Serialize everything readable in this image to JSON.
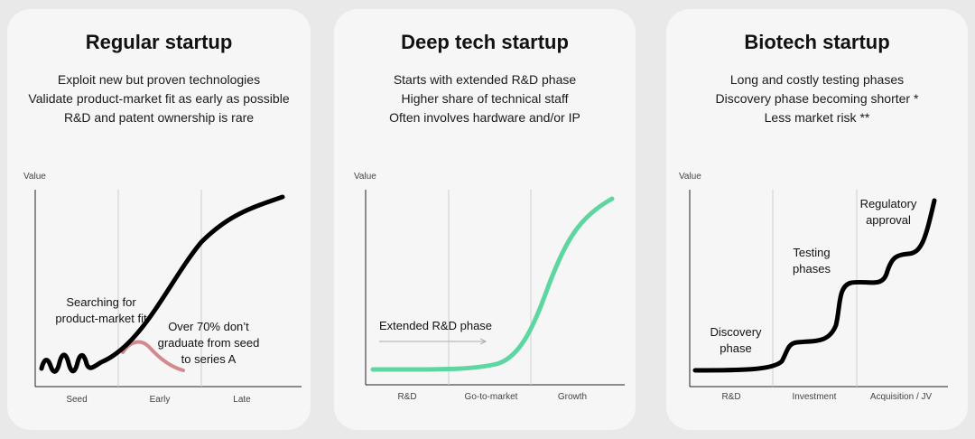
{
  "cards": [
    {
      "title": "Regular startup",
      "desc": [
        "Exploit new but proven technologies",
        "Validate product-market fit as early as possible",
        "R&D and patent ownership is rare"
      ],
      "y_label": "Value",
      "x_labels": [
        "Seed",
        "Early",
        "Late"
      ],
      "notes": {
        "search": [
          "Searching for",
          "product-market fit"
        ],
        "fail": [
          "Over 70% don’t",
          "graduate from seed",
          "to series A"
        ]
      },
      "colors": {
        "main": "#000000",
        "fail": "#d4898f"
      }
    },
    {
      "title": "Deep tech startup",
      "desc": [
        "Starts with extended R&D phase",
        "Higher share of technical staff",
        "Often involves hardware and/or IP"
      ],
      "y_label": "Value",
      "x_labels": [
        "R&D",
        "Go-to-market",
        "Growth"
      ],
      "notes": {
        "rd": "Extended R&D phase"
      },
      "colors": {
        "main": "#5ed6a2"
      }
    },
    {
      "title": "Biotech startup",
      "desc": [
        "Long and costly testing phases",
        "Discovery phase becoming shorter *",
        "Less market risk **"
      ],
      "y_label": "Value",
      "x_labels": [
        "R&D",
        "Investment",
        "Acquisition / JV"
      ],
      "notes": {
        "discovery": [
          "Discovery",
          "phase"
        ],
        "testing": [
          "Testing",
          "phases"
        ],
        "regulatory": [
          "Regulatory",
          "approval"
        ]
      },
      "colors": {
        "main": "#000000"
      }
    }
  ]
}
